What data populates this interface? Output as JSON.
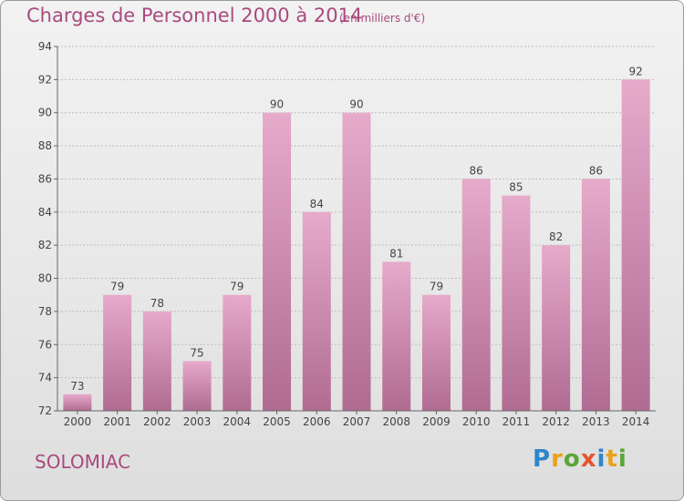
{
  "header": {
    "title": "Charges de Personnel 2000 à 2014",
    "subtitle": "(en milliers d'€)"
  },
  "footer": {
    "place": "SOLOMIAC",
    "logo_letters": [
      "P",
      "r",
      "o",
      "x",
      "i",
      "t",
      "i"
    ],
    "logo_colors": [
      "#2f86c8",
      "#e8a21c",
      "#5aa637",
      "#e4542e",
      "#2f86c8",
      "#e8a21c",
      "#5aa637"
    ]
  },
  "colors": {
    "bar_top": "#e6aacb",
    "bar_bottom": "#b06b91",
    "text": "#a94a7e",
    "axis": "#666666",
    "grid": "#bdbdbd"
  },
  "chart_data": {
    "type": "bar",
    "categories": [
      "2000",
      "2001",
      "2002",
      "2003",
      "2004",
      "2005",
      "2006",
      "2007",
      "2008",
      "2009",
      "2010",
      "2011",
      "2012",
      "2013",
      "2014"
    ],
    "values": [
      73,
      79,
      78,
      75,
      79,
      90,
      84,
      90,
      81,
      79,
      86,
      85,
      82,
      86,
      92
    ],
    "title": "Charges de Personnel 2000 à 2014",
    "ylabel": "",
    "xlabel": "",
    "ylim": [
      72,
      94
    ],
    "yticks": [
      72,
      74,
      76,
      78,
      80,
      82,
      84,
      86,
      88,
      90,
      92,
      94
    ],
    "grid": true,
    "data_labels": true
  }
}
